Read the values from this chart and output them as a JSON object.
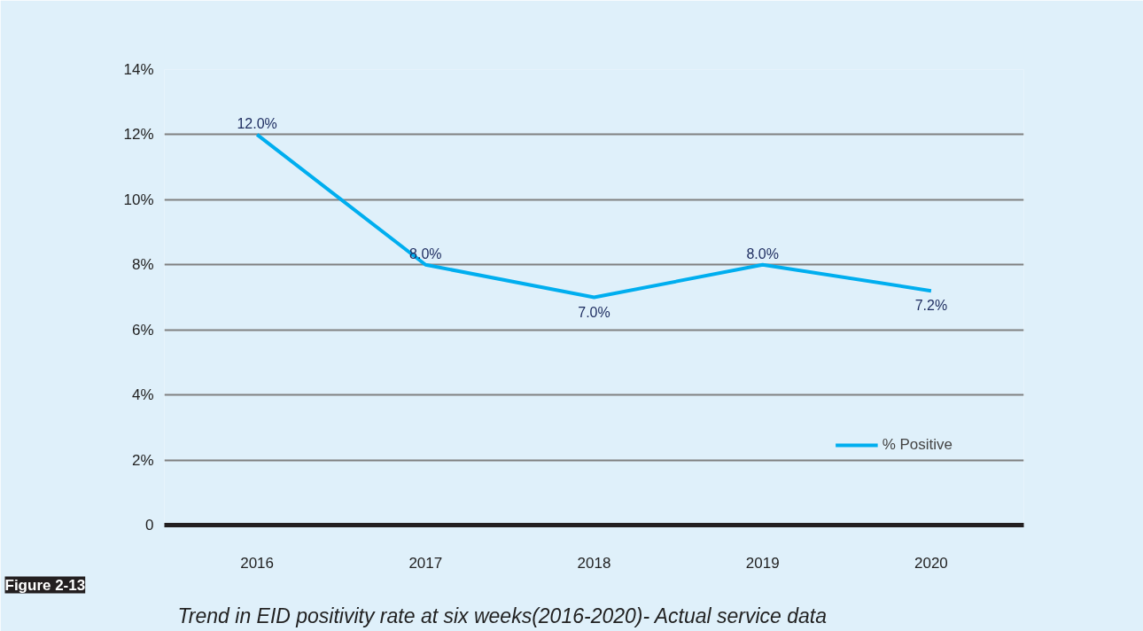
{
  "chart_data": {
    "type": "line",
    "title": "Figure 2-13",
    "subtitle": "Trend in EID positivity rate at six weeks(2016-2020)- Actual service data",
    "categories": [
      "2016",
      "2017",
      "2018",
      "2019",
      "2020"
    ],
    "series": [
      {
        "name": "% Positive",
        "color": "#00aeef",
        "values": [
          12.0,
          8.0,
          7.0,
          8.0,
          7.2
        ]
      }
    ],
    "value_labels": [
      "12.0%",
      "8.0%",
      "7.0%",
      "8.0%",
      "7.2%"
    ],
    "ylim": [
      0,
      14
    ],
    "yticks": [
      {
        "value": 0,
        "label": "0"
      },
      {
        "value": 2,
        "label": "2%"
      },
      {
        "value": 4,
        "label": "4%"
      },
      {
        "value": 6,
        "label": "6%"
      },
      {
        "value": 8,
        "label": "8%"
      },
      {
        "value": 10,
        "label": "10%"
      },
      {
        "value": 12,
        "label": "12%"
      },
      {
        "value": 14,
        "label": "14%"
      }
    ],
    "grid": "y",
    "legend": "bottom right",
    "marker": "none",
    "line_style": "solid"
  }
}
